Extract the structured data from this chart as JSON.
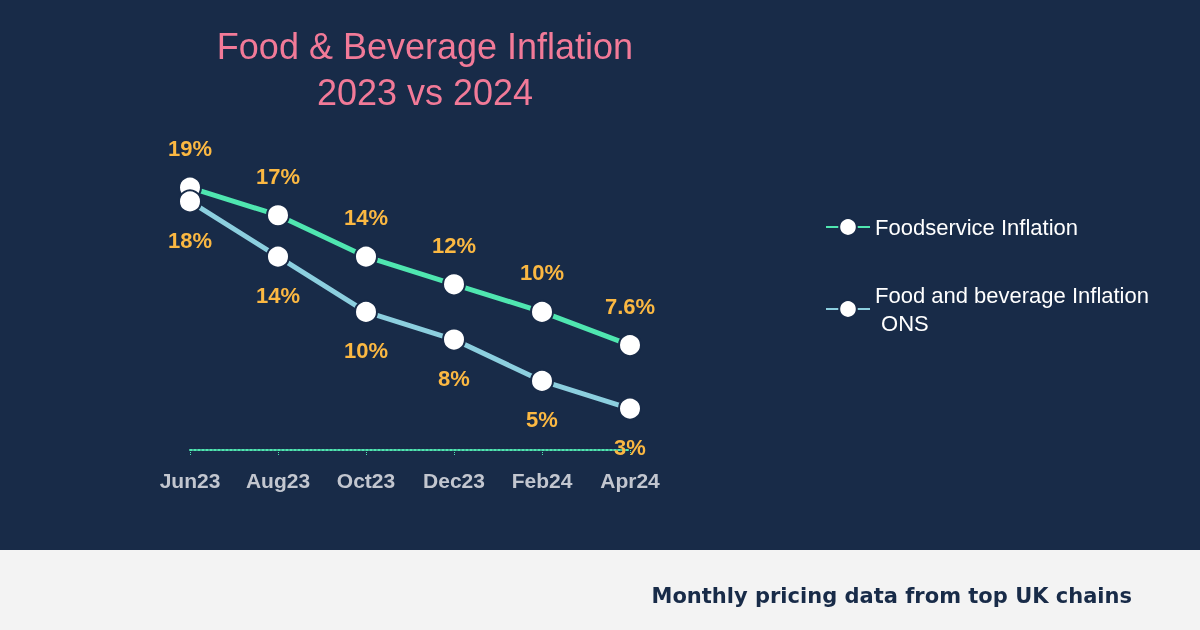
{
  "chart_data": {
    "type": "line",
    "title": "Food & Beverage Inflation\n2023 vs 2024",
    "categories": [
      "Jun23",
      "Aug23",
      "Oct23",
      "Dec23",
      "Feb24",
      "Apr24"
    ],
    "series": [
      {
        "name": "Foodservice Inflation",
        "color": "#4fe6b0",
        "values": [
          19,
          17,
          14,
          12,
          10,
          7.6
        ],
        "value_labels": [
          "19%",
          "17%",
          "14%",
          "12%",
          "10%",
          "7.6%"
        ]
      },
      {
        "name": "Food and beverage Inflation ONS",
        "color": "#8ccfdf",
        "values": [
          18,
          14,
          10,
          8,
          5,
          3
        ],
        "value_labels": [
          "18%",
          "14%",
          "10%",
          "8%",
          "5%",
          "3%"
        ]
      }
    ],
    "marker": "circle",
    "line_style": "solid",
    "legend": "right",
    "grid": false,
    "annotations": [
      "Monthly pricing data from top UK chains"
    ]
  }
}
